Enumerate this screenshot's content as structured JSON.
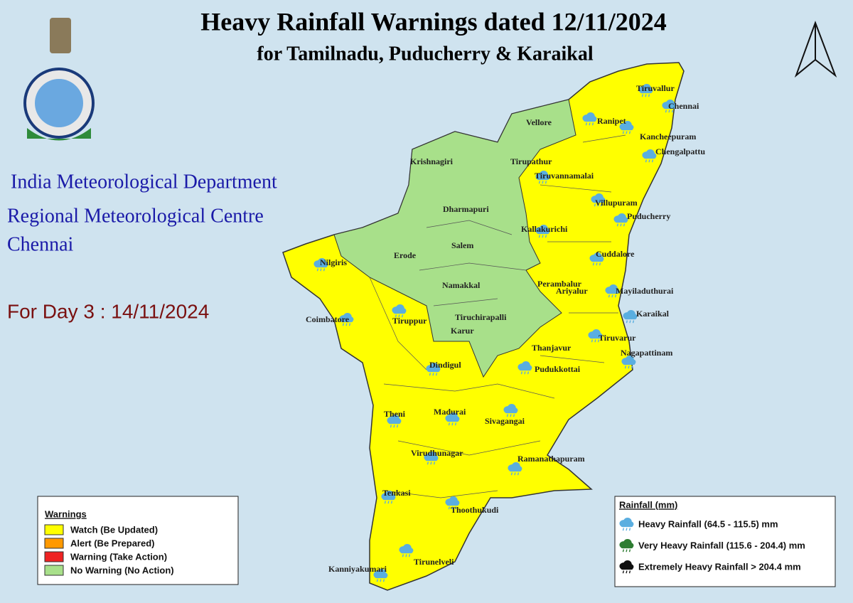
{
  "header": {
    "title": "Heavy Rainfall Warnings dated 12/11/2024",
    "subtitle": "for Tamilnadu, Puducherry & Karaikal"
  },
  "org": {
    "line1": "India Meteorological Department",
    "line2": "Regional Meteorological Centre",
    "line3": "Chennai"
  },
  "day": "For Day 3 : 14/11/2024",
  "districts": [
    "Tiruvallur",
    "Chennai",
    "Vellore",
    "Ranipet",
    "Kancheepuram",
    "Chengalpattu",
    "Krishnagiri",
    "Tirupathur",
    "Tiruvannamalai",
    "Dharmapuri",
    "Villupuram",
    "Puducherry",
    "Kallakurichi",
    "Salem",
    "Erode",
    "Cuddalore",
    "Nilgiris",
    "Namakkal",
    "Perambalur",
    "Ariyalur",
    "Mayiladuthurai",
    "Coimbatore",
    "Tiruppur",
    "Tiruchirapalli",
    "Karaikal",
    "Karur",
    "Tiruvarur",
    "Thanjavur",
    "Nagapattinam",
    "Dindigul",
    "Pudukkottai",
    "Theni",
    "Madurai",
    "Sivagangai",
    "Virudhunagar",
    "Ramanathapuram",
    "Tenkasi",
    "Thoothukudi",
    "Tirunelveli",
    "Kanniyakumari"
  ],
  "legend_warnings": {
    "title": "Warnings",
    "items": [
      {
        "label": "Watch (Be Updated)",
        "color": "#ffff00"
      },
      {
        "label": "Alert (Be Prepared)",
        "color": "#ff9900"
      },
      {
        "label": "Warning (Take Action)",
        "color": "#ee2222"
      },
      {
        "label": "No Warning (No Action)",
        "color": "#a8e08a"
      }
    ]
  },
  "legend_rainfall": {
    "title": "Rainfall (mm)",
    "items": [
      {
        "label": "Heavy Rainfall (64.5 - 115.5) mm",
        "color": "#5aaee0"
      },
      {
        "label": "Very Heavy Rainfall (115.6 - 204.4) mm",
        "color": "#2e7d32"
      },
      {
        "label": "Extremely Heavy Rainfall > 204.4 mm",
        "color": "#111111"
      }
    ]
  }
}
